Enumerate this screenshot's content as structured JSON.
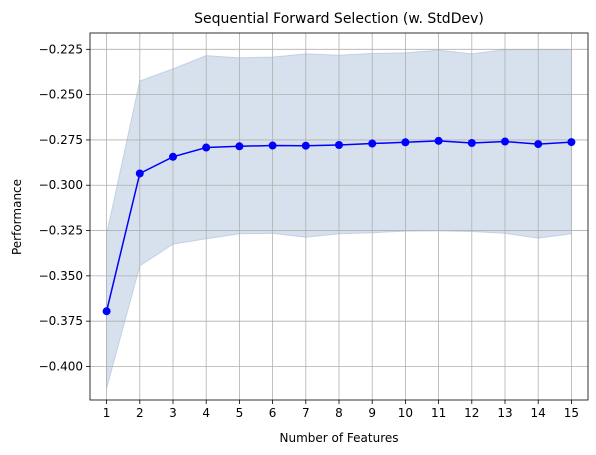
{
  "chart_data": {
    "type": "line",
    "title": "Sequential Forward Selection (w. StdDev)",
    "xlabel": "Number of Features",
    "ylabel": "Performance",
    "xlim": [
      0.5,
      15.5
    ],
    "ylim": [
      -0.4185,
      -0.216
    ],
    "x_ticks": [
      1,
      2,
      3,
      4,
      5,
      6,
      7,
      8,
      9,
      10,
      11,
      12,
      13,
      14,
      15
    ],
    "y_ticks": [
      -0.4,
      -0.375,
      -0.35,
      -0.325,
      -0.3,
      -0.275,
      -0.25,
      -0.225
    ],
    "y_tick_labels": [
      "−0.400",
      "−0.375",
      "−0.350",
      "−0.325",
      "−0.300",
      "−0.275",
      "−0.250",
      "−0.225"
    ],
    "grid": true,
    "series": [
      {
        "x": [
          1,
          2,
          3,
          4,
          5,
          6,
          7,
          8,
          9,
          10,
          11,
          12,
          13,
          14,
          15
        ],
        "values": [
          -0.3695,
          -0.2935,
          -0.2843,
          -0.2792,
          -0.2785,
          -0.2781,
          -0.2782,
          -0.2778,
          -0.277,
          -0.2763,
          -0.2755,
          -0.2767,
          -0.2759,
          -0.2773,
          -0.2762
        ],
        "lower": [
          -0.412,
          -0.3445,
          -0.3325,
          -0.3295,
          -0.3268,
          -0.3265,
          -0.3287,
          -0.3268,
          -0.3262,
          -0.3253,
          -0.3252,
          -0.3255,
          -0.3265,
          -0.3292,
          -0.3268
        ],
        "upper": [
          -0.327,
          -0.2425,
          -0.2358,
          -0.2285,
          -0.2297,
          -0.2293,
          -0.2275,
          -0.2283,
          -0.2273,
          -0.227,
          -0.2255,
          -0.2275,
          -0.2252,
          -0.2252,
          -0.2252
        ],
        "line_color": "#0000ff",
        "band_color": "#b0c4de"
      }
    ]
  }
}
